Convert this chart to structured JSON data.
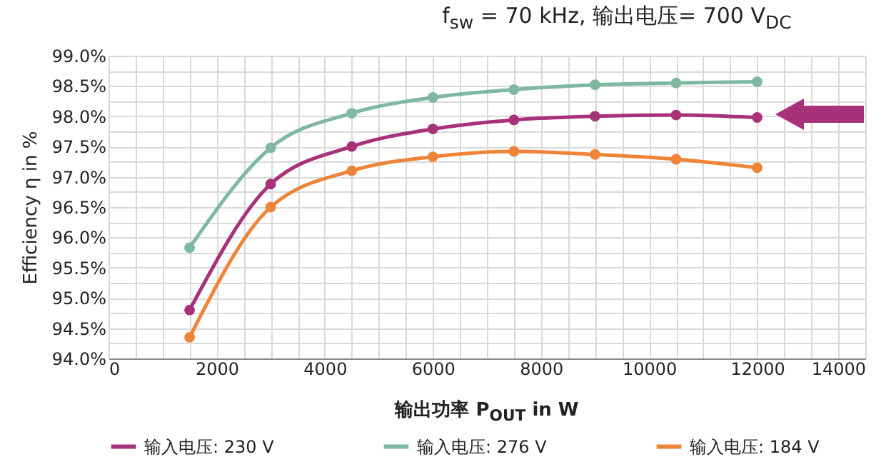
{
  "chart_data": {
    "type": "line",
    "title": "f$_{sw}$ = 70 kHz, 输出电压= 700 V$_{DC}$",
    "xlabel": "输出功率 P$_{OUT}$ in W",
    "ylabel": "Efficiency η in %",
    "x": [
      1500,
      3000,
      4500,
      6000,
      7500,
      9000,
      10500,
      12000
    ],
    "series": [
      {
        "name": "输入电压: 230 V",
        "color": "#a83279",
        "values": [
          94.8,
          96.88,
          97.5,
          97.79,
          97.94,
          98.0,
          98.02,
          97.98
        ]
      },
      {
        "name": "输入电压: 276 V",
        "color": "#7fb8a0",
        "values": [
          95.83,
          97.48,
          98.05,
          98.31,
          98.44,
          98.52,
          98.55,
          98.57
        ]
      },
      {
        "name": "输入电压: 184 V",
        "color": "#ee8438",
        "values": [
          94.35,
          96.5,
          97.1,
          97.33,
          97.42,
          97.37,
          97.29,
          97.15
        ]
      }
    ],
    "xlim": [
      0,
      14000
    ],
    "xticks": [
      0,
      {
        "value": 500,
        "label": null
      },
      {
        "value": 1000,
        "label": null
      },
      {
        "value": 1500,
        "label": null
      },
      2000,
      {
        "value": 2500,
        "label": null
      },
      {
        "value": 3000,
        "label": null
      },
      {
        "value": 3500,
        "label": null
      },
      4000,
      {
        "value": 4500,
        "label": null
      },
      {
        "value": 5000,
        "label": null
      },
      {
        "value": 5500,
        "label": null
      },
      6000,
      {
        "value": 6500,
        "label": null
      },
      {
        "value": 7000,
        "label": null
      },
      {
        "value": 7500,
        "label": null
      },
      8000,
      {
        "value": 8500,
        "label": null
      },
      {
        "value": 9000,
        "label": null
      },
      {
        "value": 9500,
        "label": null
      },
      10000,
      {
        "value": 10500,
        "label": null
      },
      {
        "value": 11000,
        "label": null
      },
      {
        "value": 11500,
        "label": null
      },
      12000,
      {
        "value": 12500,
        "label": null
      },
      {
        "value": 13000,
        "label": null
      },
      {
        "value": 13500,
        "label": null
      },
      14000
    ],
    "ylim": [
      94,
      99
    ],
    "yticks": [
      {
        "value": 94,
        "label": "94.0%"
      },
      {
        "value": 94.25,
        "label": null
      },
      {
        "value": 94.5,
        "label": "94.5%"
      },
      {
        "value": 94.75,
        "label": null
      },
      {
        "value": 95,
        "label": "95.0%"
      },
      {
        "value": 95.25,
        "label": null
      },
      {
        "value": 95.5,
        "label": "95.5%"
      },
      {
        "value": 95.75,
        "label": null
      },
      {
        "value": 96,
        "label": "96.0%"
      },
      {
        "value": 96.25,
        "label": null
      },
      {
        "value": 96.5,
        "label": "96.5%"
      },
      {
        "value": 96.75,
        "label": null
      },
      {
        "value": 97,
        "label": "97.0%"
      },
      {
        "value": 97.25,
        "label": null
      },
      {
        "value": 97.5,
        "label": "97.5%"
      },
      {
        "value": 97.75,
        "label": null
      },
      {
        "value": 98,
        "label": "98.0%"
      },
      {
        "value": 98.25,
        "label": null
      },
      {
        "value": 98.5,
        "label": "98.5%"
      },
      {
        "value": 98.75,
        "label": null
      },
      {
        "value": 99,
        "label": "99.0%"
      }
    ],
    "grid": true,
    "legend": "bottom",
    "marker": "circle",
    "line_style": "solid"
  }
}
